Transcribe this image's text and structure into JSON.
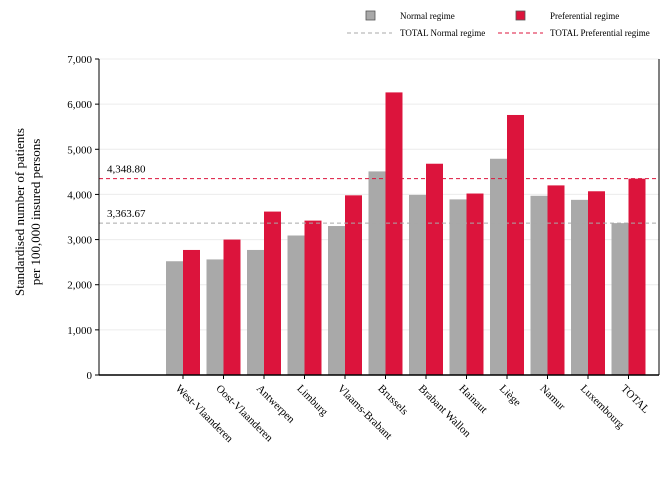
{
  "chart_data": {
    "type": "bar",
    "title": "",
    "xlabel": "",
    "ylabel": "Standardised number of patients\nper 100,000 insured persons",
    "ylim": [
      0,
      7000
    ],
    "yticks": [
      0,
      1000,
      2000,
      3000,
      4000,
      5000,
      6000,
      7000
    ],
    "ytick_labels": [
      "0",
      "1,000",
      "2,000",
      "3,000",
      "4,000",
      "5,000",
      "6,000",
      "7,000"
    ],
    "grid": true,
    "legend_position": "top",
    "categories": [
      "West-Vlaanderen",
      "Oost-Vlaanderen",
      "Antwerpen",
      "Limburg",
      "Vlaams-Brabant",
      "Brussels",
      "Brabant Wallon",
      "Hainaut",
      "Liège",
      "Namur",
      "Luxembourg",
      "TOTAL"
    ],
    "series": [
      {
        "name": "Normal regime",
        "color": "#a9a9a9",
        "values": [
          2520,
          2560,
          2770,
          3090,
          3300,
          4510,
          3990,
          3890,
          4790,
          3970,
          3880,
          3364
        ]
      },
      {
        "name": "Preferential regime",
        "color": "#dc143c",
        "values": [
          2770,
          3000,
          3620,
          3420,
          3980,
          6260,
          4680,
          4020,
          5760,
          4200,
          4070,
          4349
        ]
      }
    ],
    "reference_lines": [
      {
        "name": "TOTAL Normal regime",
        "value": 3363.67,
        "label": "3,363.67",
        "color": "#a9a9a9",
        "style": "dashed"
      },
      {
        "name": "TOTAL Preferential regime",
        "value": 4348.8,
        "label": "4,348.80",
        "color": "#dc143c",
        "style": "dashed"
      }
    ]
  }
}
